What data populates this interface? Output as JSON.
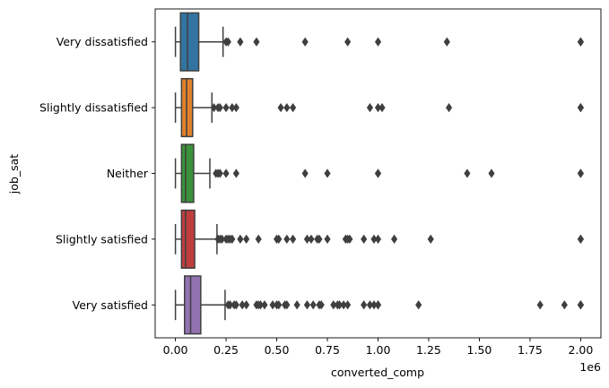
{
  "chart_data": {
    "type": "boxplot",
    "orientation": "horizontal",
    "xlabel": "converted_comp",
    "ylabel": "job_sat",
    "x_offset_label": "1e6",
    "xlim": [
      -0.1,
      2.1
    ],
    "x_scale": 1000000,
    "xticks": [
      0.0,
      0.25,
      0.5,
      0.75,
      1.0,
      1.25,
      1.5,
      1.75,
      2.0
    ],
    "xtick_labels": [
      "0.00",
      "0.25",
      "0.50",
      "0.75",
      "1.00",
      "1.25",
      "1.50",
      "1.75",
      "2.00"
    ],
    "categories": [
      "Very dissatisfied",
      "Slightly dissatisfied",
      "Neither",
      "Slightly satisfied",
      "Very satisfied"
    ],
    "series": [
      {
        "category": "Very dissatisfied",
        "color": "#3274a1",
        "whisker_low": 0.0,
        "q1": 0.025,
        "median": 0.06,
        "q3": 0.115,
        "whisker_high": 0.235,
        "outliers": [
          0.25,
          0.26,
          0.32,
          0.4,
          0.64,
          0.85,
          1.0,
          1.34,
          2.0,
          2.0
        ]
      },
      {
        "category": "Slightly dissatisfied",
        "color": "#e1812c",
        "whisker_low": 0.0,
        "q1": 0.03,
        "median": 0.055,
        "q3": 0.085,
        "whisker_high": 0.18,
        "outliers": [
          0.19,
          0.21,
          0.22,
          0.25,
          0.28,
          0.3,
          0.52,
          0.55,
          0.58,
          0.96,
          1.0,
          1.02,
          1.35,
          2.0,
          2.0
        ]
      },
      {
        "category": "Neither",
        "color": "#3a923a",
        "whisker_low": 0.0,
        "q1": 0.03,
        "median": 0.05,
        "q3": 0.09,
        "whisker_high": 0.17,
        "outliers": [
          0.2,
          0.21,
          0.22,
          0.25,
          0.3,
          0.64,
          0.75,
          1.0,
          1.0,
          1.44,
          1.56,
          2.0,
          2.0
        ]
      },
      {
        "category": "Slightly satisfied",
        "color": "#c03d3e",
        "whisker_low": 0.0,
        "q1": 0.03,
        "median": 0.05,
        "q3": 0.095,
        "whisker_high": 0.205,
        "outliers": [
          0.21,
          0.22,
          0.23,
          0.25,
          0.26,
          0.27,
          0.28,
          0.32,
          0.35,
          0.41,
          0.5,
          0.51,
          0.55,
          0.58,
          0.65,
          0.67,
          0.7,
          0.71,
          0.75,
          0.84,
          0.85,
          0.86,
          0.93,
          0.98,
          1.0,
          1.08,
          1.26,
          2.0,
          2.0
        ]
      },
      {
        "category": "Very satisfied",
        "color": "#9372b2",
        "whisker_low": 0.0,
        "q1": 0.045,
        "median": 0.075,
        "q3": 0.125,
        "whisker_high": 0.245,
        "outliers": [
          0.26,
          0.27,
          0.29,
          0.3,
          0.33,
          0.35,
          0.4,
          0.41,
          0.42,
          0.44,
          0.48,
          0.5,
          0.51,
          0.54,
          0.55,
          0.6,
          0.65,
          0.68,
          0.71,
          0.72,
          0.78,
          0.8,
          0.81,
          0.83,
          0.85,
          0.93,
          0.96,
          0.98,
          1.0,
          1.0,
          1.2,
          1.8,
          1.92,
          2.0,
          2.0,
          2.0
        ]
      }
    ]
  }
}
